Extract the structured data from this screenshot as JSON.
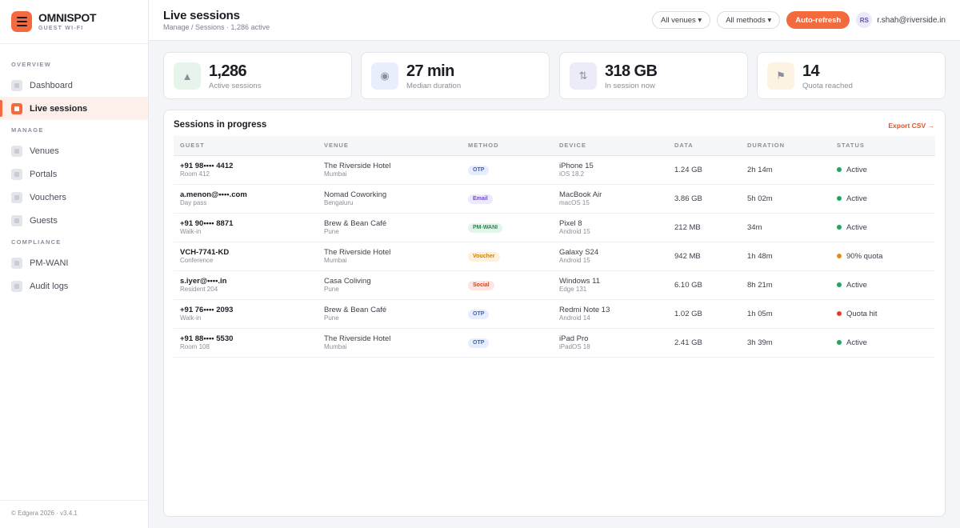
{
  "brand": {
    "name": "OMNISPOT",
    "subtitle": "GUEST WI-FI"
  },
  "sidebar": {
    "sections": [
      "OVERVIEW",
      "MANAGE",
      "COMPLIANCE"
    ],
    "items": [
      {
        "label": "Dashboard",
        "section": "OVERVIEW"
      },
      {
        "label": "Live sessions",
        "section": "OVERVIEW",
        "active": true
      },
      {
        "label": "Venues",
        "section": "MANAGE"
      },
      {
        "label": "Portals",
        "section": "MANAGE"
      },
      {
        "label": "Vouchers",
        "section": "MANAGE"
      },
      {
        "label": "Guests",
        "section": "MANAGE"
      },
      {
        "label": "PM-WANI",
        "section": "COMPLIANCE"
      },
      {
        "label": "Audit logs",
        "section": "COMPLIANCE"
      }
    ],
    "footer": "© Edgera 2026 · v3.4.1"
  },
  "header": {
    "title": "Live sessions",
    "breadcrumb": "Manage / Sessions · 1,286 active",
    "venue_filter": "All venues ▾",
    "method_filter": "All methods ▾",
    "auto_refresh_label": "Auto-refresh",
    "user_initials": "RS",
    "user_email": "r.shah@riverside.in"
  },
  "stats": [
    {
      "value": "1,286",
      "label": "Active sessions",
      "icon": "▲",
      "icon_name": "trend-up-icon",
      "icon_bg": "#e6f4ec"
    },
    {
      "value": "27 min",
      "label": "Median duration",
      "icon": "◉",
      "icon_name": "clock-icon",
      "icon_bg": "#e8eefb"
    },
    {
      "value": "318 GB",
      "label": "In session now",
      "icon": "⇅",
      "icon_name": "transfer-icon",
      "icon_bg": "#ecebf8"
    },
    {
      "value": "14",
      "label": "Quota reached",
      "icon": "⚑",
      "icon_name": "flag-icon",
      "icon_bg": "#fdf3e3"
    }
  ],
  "table": {
    "title": "Sessions in progress",
    "export_label": "Export CSV →",
    "columns": [
      "GUEST",
      "VENUE",
      "METHOD",
      "DEVICE",
      "DATA",
      "DURATION",
      "STATUS"
    ],
    "method_styles": {
      "OTP": {
        "bg": "#e6edfc",
        "fg": "#3c63c9"
      },
      "Email": {
        "bg": "#ede8fb",
        "fg": "#6b4fc4"
      },
      "PM-WANI": {
        "bg": "#e3f5ea",
        "fg": "#25894e"
      },
      "Voucher": {
        "bg": "#fdf1dc",
        "fg": "#c98314"
      },
      "Social": {
        "bg": "#fde6e1",
        "fg": "#cc4626"
      }
    },
    "status_colors": {
      "active": "#1fa463",
      "warning": "#e58a16",
      "error": "#e33b2b"
    },
    "rows": [
      {
        "guest": "+91 98•••• 4412",
        "guest_sub": "Room 412",
        "venue": "The Riverside Hotel",
        "venue_sub": "Mumbai",
        "method": "OTP",
        "device": "iPhone 15",
        "device_sub": "iOS 18.2",
        "data": "1.24 GB",
        "duration": "2h 14m",
        "status": "Active",
        "status_kind": "active"
      },
      {
        "guest": "a.menon@••••.com",
        "guest_sub": "Day pass",
        "venue": "Nomad Coworking",
        "venue_sub": "Bengaluru",
        "method": "Email",
        "device": "MacBook Air",
        "device_sub": "macOS 15",
        "data": "3.86 GB",
        "duration": "5h 02m",
        "status": "Active",
        "status_kind": "active"
      },
      {
        "guest": "+91 90•••• 8871",
        "guest_sub": "Walk-in",
        "venue": "Brew & Bean Café",
        "venue_sub": "Pune",
        "method": "PM-WANI",
        "device": "Pixel 8",
        "device_sub": "Android 15",
        "data": "212 MB",
        "duration": "34m",
        "status": "Active",
        "status_kind": "active"
      },
      {
        "guest": "VCH-7741-KD",
        "guest_sub": "Conference",
        "venue": "The Riverside Hotel",
        "venue_sub": "Mumbai",
        "method": "Voucher",
        "device": "Galaxy S24",
        "device_sub": "Android 15",
        "data": "942 MB",
        "duration": "1h 48m",
        "status": "90% quota",
        "status_kind": "warning"
      },
      {
        "guest": "s.iyer@••••.in",
        "guest_sub": "Resident 204",
        "venue": "Casa Coliving",
        "venue_sub": "Pune",
        "method": "Social",
        "device": "Windows 11",
        "device_sub": "Edge 131",
        "data": "6.10 GB",
        "duration": "8h 21m",
        "status": "Active",
        "status_kind": "active"
      },
      {
        "guest": "+91 76•••• 2093",
        "guest_sub": "Walk-in",
        "venue": "Brew & Bean Café",
        "venue_sub": "Pune",
        "method": "OTP",
        "device": "Redmi Note 13",
        "device_sub": "Android 14",
        "data": "1.02 GB",
        "duration": "1h 05m",
        "status": "Quota hit",
        "status_kind": "error"
      },
      {
        "guest": "+91 88•••• 5530",
        "guest_sub": "Room 108",
        "venue": "The Riverside Hotel",
        "venue_sub": "Mumbai",
        "method": "OTP",
        "device": "iPad Pro",
        "device_sub": "iPadOS 18",
        "data": "2.41 GB",
        "duration": "3h 39m",
        "status": "Active",
        "status_kind": "active"
      }
    ]
  }
}
